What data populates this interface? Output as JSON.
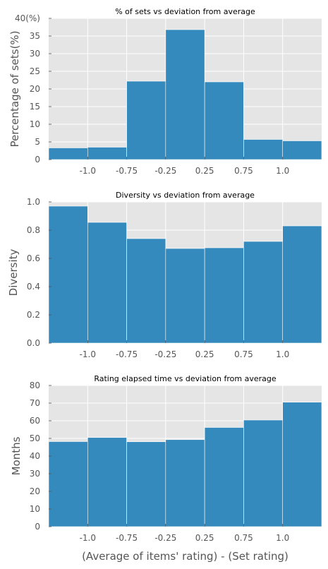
{
  "chart_data": [
    {
      "type": "bar",
      "title": "% of sets vs deviation from average",
      "ylabel": "Percentage of sets(%)",
      "xlabel": "",
      "ylim": [
        0,
        40
      ],
      "yticks": [
        "0",
        "5",
        "10",
        "15",
        "20",
        "25",
        "30",
        "35",
        "40(%)"
      ],
      "yticks_values": [
        0,
        5,
        10,
        15,
        20,
        25,
        30,
        35,
        40
      ],
      "xticks": [
        "-1.0",
        "-0.75",
        "-0.25",
        "0.25",
        "0.75",
        "1.0"
      ],
      "values": [
        3.3,
        3.5,
        22.2,
        36.8,
        22.0,
        5.7,
        5.3
      ],
      "grid": true,
      "bar_color": "#348abd"
    },
    {
      "type": "bar",
      "title": "Diversity vs deviation from average",
      "ylabel": "Diversity",
      "xlabel": "",
      "ylim": [
        0,
        1.0
      ],
      "yticks": [
        "0.0",
        "0.2",
        "0.4",
        "0.6",
        "0.8",
        "1.0"
      ],
      "yticks_values": [
        0,
        0.2,
        0.4,
        0.6,
        0.8,
        1.0
      ],
      "xticks": [
        "-1.0",
        "-0.75",
        "-0.25",
        "0.25",
        "0.75",
        "1.0"
      ],
      "values": [
        0.97,
        0.855,
        0.74,
        0.67,
        0.675,
        0.72,
        0.83
      ],
      "grid": true,
      "bar_color": "#348abd"
    },
    {
      "type": "bar",
      "title": "Rating elapsed time vs deviation from average",
      "ylabel": "Months",
      "xlabel": "(Average of items' rating)  - (Set rating)",
      "ylim": [
        0,
        80
      ],
      "yticks": [
        "0",
        "10",
        "20",
        "30",
        "40",
        "50",
        "60",
        "70",
        "80"
      ],
      "yticks_values": [
        0,
        10,
        20,
        30,
        40,
        50,
        60,
        70,
        80
      ],
      "xticks": [
        "-1.0",
        "-0.75",
        "-0.25",
        "0.25",
        "0.75",
        "1.0"
      ],
      "values": [
        48.2,
        50.5,
        48.1,
        49.3,
        56.2,
        60.4,
        70.5
      ],
      "grid": true,
      "bar_color": "#348abd"
    }
  ]
}
